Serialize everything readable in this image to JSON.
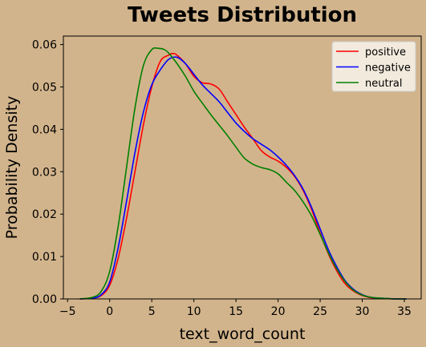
{
  "chart_data": {
    "type": "line",
    "title": "Tweets Distribution",
    "xlabel": "text_word_count",
    "ylabel": "Probability Density",
    "xlim": [
      -5.5,
      37
    ],
    "ylim": [
      0,
      0.062
    ],
    "xticks": [
      -5,
      0,
      5,
      10,
      15,
      20,
      25,
      30,
      35
    ],
    "xtick_labels": [
      "−5",
      "0",
      "5",
      "10",
      "15",
      "20",
      "25",
      "30",
      "35"
    ],
    "yticks": [
      0,
      0.01,
      0.02,
      0.03,
      0.04,
      0.05,
      0.06
    ],
    "ytick_labels": [
      "0.00",
      "0.01",
      "0.02",
      "0.03",
      "0.04",
      "0.05",
      "0.06"
    ],
    "grid": false,
    "legend_position": "top-right",
    "background_color": "#d2b48c",
    "series": [
      {
        "name": "positive",
        "color": "#ff0000",
        "x": [
          -3.5,
          -2,
          -1,
          0,
          1,
          2,
          3,
          4,
          5,
          6,
          7,
          7.5,
          8,
          9,
          10,
          11,
          12,
          13,
          14,
          15,
          16,
          17,
          18,
          19,
          20,
          21,
          22,
          23,
          24,
          25,
          26,
          27,
          28,
          29,
          30,
          31,
          32,
          33,
          34,
          35.2
        ],
        "y": [
          0,
          0.0002,
          0.0008,
          0.0032,
          0.0095,
          0.019,
          0.03,
          0.041,
          0.05,
          0.056,
          0.0575,
          0.0579,
          0.0575,
          0.0555,
          0.0525,
          0.051,
          0.0507,
          0.0495,
          0.0465,
          0.0435,
          0.0405,
          0.0378,
          0.035,
          0.0335,
          0.0325,
          0.031,
          0.0288,
          0.0255,
          0.021,
          0.0155,
          0.0105,
          0.0065,
          0.0035,
          0.0018,
          0.0008,
          0.0003,
          0.0001,
          5e-05,
          0,
          0
        ]
      },
      {
        "name": "negative",
        "color": "#0000ff",
        "x": [
          -3.5,
          -2,
          -1,
          0,
          1,
          2,
          3,
          4,
          5,
          6,
          7,
          8,
          9,
          10,
          11,
          12,
          13,
          14,
          15,
          16,
          17,
          18,
          19,
          20,
          21,
          22,
          23,
          24,
          25,
          26,
          27,
          28,
          29,
          30,
          31,
          32,
          33,
          34,
          35.2
        ],
        "y": [
          0,
          0.0002,
          0.001,
          0.004,
          0.012,
          0.023,
          0.0345,
          0.044,
          0.0505,
          0.054,
          0.0565,
          0.057,
          0.0555,
          0.053,
          0.0505,
          0.0485,
          0.0465,
          0.044,
          0.0415,
          0.0395,
          0.0378,
          0.0365,
          0.0352,
          0.0335,
          0.0315,
          0.029,
          0.0258,
          0.0215,
          0.0165,
          0.0115,
          0.0075,
          0.0042,
          0.0022,
          0.001,
          0.0004,
          0.0002,
          0.0001,
          0,
          0
        ]
      },
      {
        "name": "neutral",
        "color": "#008000",
        "x": [
          -3.5,
          -2,
          -1,
          0,
          1,
          2,
          3,
          4,
          5,
          5.8,
          6.5,
          7,
          8,
          9,
          10,
          11,
          12,
          13,
          14,
          15,
          16,
          17,
          18,
          19,
          20,
          21,
          22,
          23,
          24,
          25,
          26,
          27,
          28,
          29,
          30,
          31,
          32,
          33,
          34,
          35.2
        ],
        "y": [
          0,
          0.0004,
          0.0018,
          0.0065,
          0.017,
          0.031,
          0.045,
          0.055,
          0.0588,
          0.0591,
          0.0588,
          0.058,
          0.0555,
          0.0525,
          0.049,
          0.0462,
          0.0435,
          0.041,
          0.0385,
          0.0358,
          0.0332,
          0.0318,
          0.031,
          0.0305,
          0.0295,
          0.0275,
          0.0255,
          0.0228,
          0.0195,
          0.0152,
          0.0108,
          0.007,
          0.004,
          0.002,
          0.0009,
          0.0004,
          0.0002,
          0.0001,
          0,
          0
        ]
      }
    ]
  }
}
